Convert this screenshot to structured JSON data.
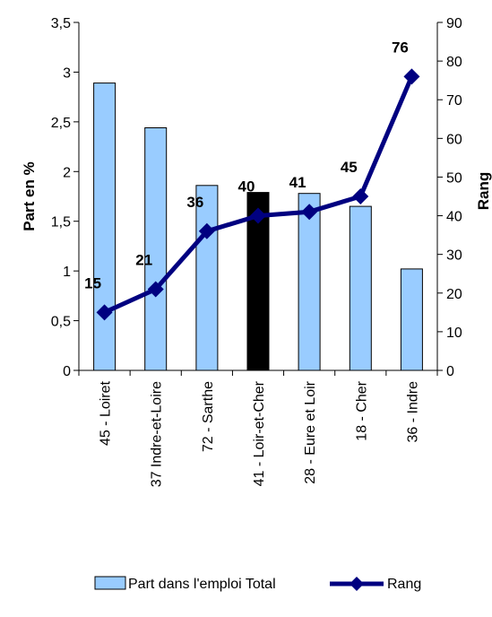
{
  "chart_data": {
    "type": "bar",
    "categories": [
      "45 - Loiret",
      "37  Indre-et-Loire",
      "72 - Sarthe",
      "41 - Loir-et-Cher",
      "28 - Eure et Loir",
      "18 - Cher",
      "36 - Indre"
    ],
    "series": [
      {
        "name": "Part dans l'emploi Total",
        "type": "bar",
        "axis": "left",
        "values": [
          2.89,
          2.44,
          1.86,
          1.79,
          1.78,
          1.65,
          1.02
        ],
        "color": "#99ccff",
        "highlight_index": 3,
        "highlight_color": "#000000"
      },
      {
        "name": "Rang",
        "type": "line",
        "axis": "right",
        "values": [
          15,
          21,
          36,
          40,
          41,
          45,
          76
        ],
        "data_labels": [
          "15",
          "21",
          "36",
          "40",
          "41",
          "45",
          "76"
        ],
        "color": "#000080",
        "marker": "diamond"
      }
    ],
    "title": "",
    "ylabel": "Part en %",
    "ylabel_right": "Rang",
    "ylim": [
      0,
      3.5
    ],
    "ylim_right": [
      0,
      90
    ],
    "yticks": [
      "0",
      "0,5",
      "1",
      "1,5",
      "2",
      "2,5",
      "3",
      "3,5"
    ],
    "yticks_right": [
      "0",
      "10",
      "20",
      "30",
      "40",
      "50",
      "60",
      "70",
      "80",
      "90"
    ],
    "grid": false,
    "legend_position": "bottom"
  }
}
